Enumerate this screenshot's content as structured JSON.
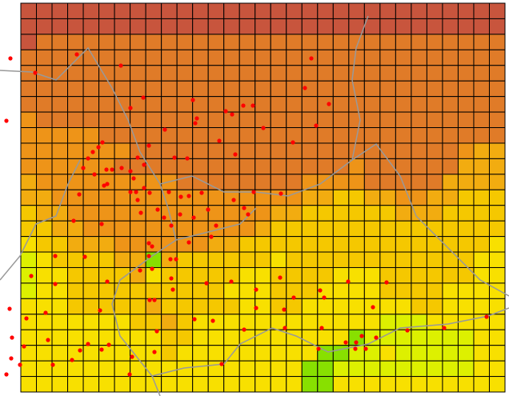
{
  "map": {
    "palette": [
      "#c8553d",
      "#e07b28",
      "#ee9418",
      "#f2ac10",
      "#f5c800",
      "#f8e000",
      "#ddf000",
      "#88e000"
    ],
    "grid": [
      "0000000000000000000000000000000",
      "0000000000000000000000000000000",
      "0111111111111111111111111111111",
      "1111111111111111111111111111111",
      "1111111111111111111111111111111",
      "1111111111111111111111111111111",
      "1111111111111111111111111111111",
      "2111111111111111111111111111111",
      "2222211111111111111111111111111",
      "2222222111111111111111111111233",
      "2222221111111111111112111111333",
      "3222222222111111112222111113333",
      "3322222222222222223344332233444",
      "4332222222222222334444443334444",
      "4433222222222223444444444444444",
      "5443332222223344444444444444445",
      "6544443373444444544444444444455",
      "6554444354444455444455544444455",
      "6554444444444555444555544445555",
      "5554444434444455445555555445555",
      "5555555443455555555555566655555",
      "5555555554455555555557666666655",
      "5555555554555555555776656666655",
      "5555555555555555557766666666655",
      "5555555555555555557755555555555"
    ]
  }
}
